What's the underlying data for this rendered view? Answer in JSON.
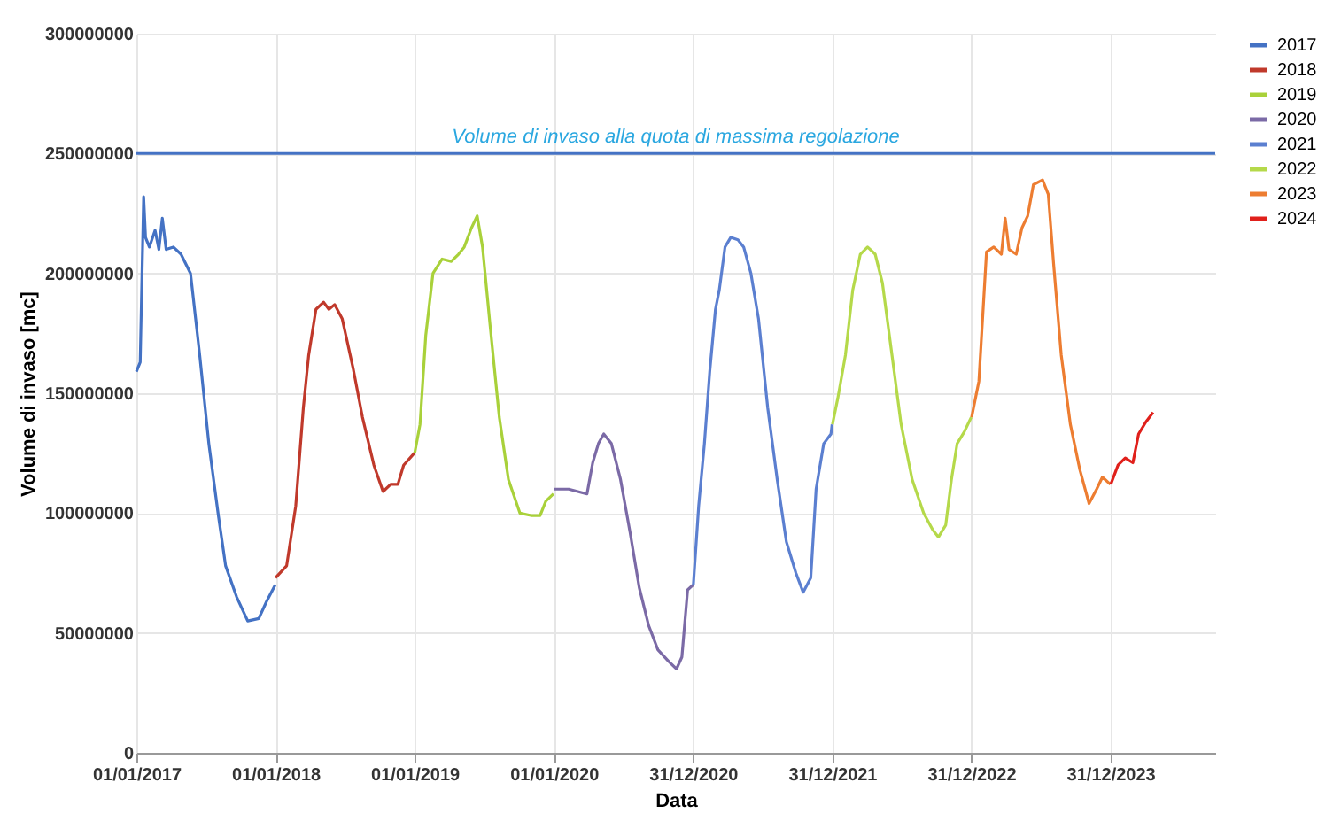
{
  "chart_data": {
    "type": "line",
    "xlabel": "Data",
    "ylabel": "Volume di invaso [mc]",
    "xlim": [
      "2017-01-01",
      "2024-10-01"
    ],
    "xticks": [
      {
        "value": "2017-01-01",
        "label": "01/01/2017"
      },
      {
        "value": "2018-01-01",
        "label": "01/01/2018"
      },
      {
        "value": "2019-01-01",
        "label": "01/01/2019"
      },
      {
        "value": "2020-01-01",
        "label": "01/01/2020"
      },
      {
        "value": "2020-12-31",
        "label": "31/12/2020"
      },
      {
        "value": "2021-12-31",
        "label": "31/12/2021"
      },
      {
        "value": "2022-12-31",
        "label": "31/12/2022"
      },
      {
        "value": "2023-12-31",
        "label": "31/12/2023"
      }
    ],
    "ylim": [
      0,
      300000000
    ],
    "yticks": [
      0,
      50000000,
      100000000,
      150000000,
      200000000,
      250000000,
      300000000
    ],
    "grid": true,
    "legend": "right",
    "ref_lines": [
      {
        "axis": "y",
        "value": 250000000,
        "label": "Volume di invaso alla quota di massima regolazione",
        "color": "#4472c4"
      }
    ],
    "series": [
      {
        "name": "2017",
        "color": "#4472c4",
        "x": [
          "2017-01-01",
          "2017-01-11",
          "2017-01-20",
          "2017-01-25",
          "2017-02-04",
          "2017-02-19",
          "2017-03-01",
          "2017-03-10",
          "2017-03-20",
          "2017-04-08",
          "2017-04-28",
          "2017-05-23",
          "2017-06-16",
          "2017-07-10",
          "2017-08-04",
          "2017-08-23",
          "2017-09-21",
          "2017-10-20",
          "2017-11-18",
          "2017-12-08",
          "2017-12-31"
        ],
        "values": [
          159000000,
          163000000,
          232000000,
          215000000,
          211000000,
          218000000,
          210000000,
          223000000,
          210000000,
          211000000,
          208000000,
          200000000,
          166000000,
          129000000,
          99000000,
          78000000,
          65000000,
          55000000,
          56000000,
          63000000,
          70000000
        ]
      },
      {
        "name": "2018",
        "color": "#c0392b",
        "x": [
          "2018-01-01",
          "2018-01-30",
          "2018-02-23",
          "2018-03-15",
          "2018-03-29",
          "2018-04-17",
          "2018-05-07",
          "2018-05-21",
          "2018-06-05",
          "2018-06-25",
          "2018-07-24",
          "2018-08-17",
          "2018-09-16",
          "2018-10-10",
          "2018-10-30",
          "2018-11-18",
          "2018-12-03",
          "2018-12-31"
        ],
        "values": [
          73000000,
          78000000,
          103000000,
          144000000,
          166000000,
          185000000,
          188000000,
          185000000,
          187000000,
          181000000,
          160000000,
          140000000,
          120000000,
          109000000,
          112000000,
          112000000,
          120000000,
          125000000
        ]
      },
      {
        "name": "2019",
        "color": "#a9d13a",
        "x": [
          "2019-01-01",
          "2019-01-15",
          "2019-01-30",
          "2019-02-18",
          "2019-03-14",
          "2019-04-07",
          "2019-04-26",
          "2019-05-11",
          "2019-05-30",
          "2019-06-14",
          "2019-06-28",
          "2019-07-18",
          "2019-08-11",
          "2019-09-04",
          "2019-10-04",
          "2019-11-02",
          "2019-11-26",
          "2019-12-11",
          "2019-12-31"
        ],
        "values": [
          125000000,
          137000000,
          174000000,
          200000000,
          206000000,
          205000000,
          208000000,
          211000000,
          219000000,
          224000000,
          211000000,
          178000000,
          140000000,
          114000000,
          100000000,
          99000000,
          99000000,
          105000000,
          108000000
        ]
      },
      {
        "name": "2020",
        "color": "#7b6aa6",
        "x": [
          "2020-01-01",
          "2020-02-09",
          "2020-03-28",
          "2020-04-12",
          "2020-04-27",
          "2020-05-11",
          "2020-05-31",
          "2020-06-24",
          "2020-07-19",
          "2020-08-12",
          "2020-09-06",
          "2020-09-30",
          "2020-10-29",
          "2020-11-18",
          "2020-12-02",
          "2020-12-17",
          "2020-12-31"
        ],
        "values": [
          110000000,
          110000000,
          108000000,
          121000000,
          129000000,
          133000000,
          129000000,
          114000000,
          92000000,
          69000000,
          53000000,
          43000000,
          38000000,
          35000000,
          40000000,
          68000000,
          70000000
        ]
      },
      {
        "name": "2021",
        "color": "#5b7fd0",
        "x": [
          "2021-01-01",
          "2021-01-15",
          "2021-01-30",
          "2021-02-13",
          "2021-02-28",
          "2021-03-10",
          "2021-03-25",
          "2021-04-09",
          "2021-04-28",
          "2021-05-13",
          "2021-06-01",
          "2021-06-21",
          "2021-07-15",
          "2021-08-09",
          "2021-09-02",
          "2021-09-27",
          "2021-10-16",
          "2021-11-05",
          "2021-11-19",
          "2021-12-09",
          "2021-12-28",
          "2021-12-31"
        ],
        "values": [
          70000000,
          103000000,
          129000000,
          159000000,
          185000000,
          193000000,
          211000000,
          215000000,
          214000000,
          211000000,
          200000000,
          181000000,
          144000000,
          114000000,
          88000000,
          75000000,
          67000000,
          73000000,
          110000000,
          129000000,
          133000000,
          137000000
        ]
      },
      {
        "name": "2022",
        "color": "#b5d94a",
        "x": [
          "2022-01-01",
          "2022-01-15",
          "2022-02-04",
          "2022-02-23",
          "2022-03-15",
          "2022-04-03",
          "2022-04-23",
          "2022-05-12",
          "2022-06-06",
          "2022-06-30",
          "2022-07-29",
          "2022-08-28",
          "2022-09-21",
          "2022-10-06",
          "2022-10-25",
          "2022-11-09",
          "2022-11-24",
          "2022-12-13",
          "2022-12-31"
        ],
        "values": [
          137000000,
          148000000,
          166000000,
          193000000,
          208000000,
          211000000,
          208000000,
          196000000,
          166000000,
          137000000,
          114000000,
          100000000,
          93000000,
          90000000,
          95000000,
          114000000,
          129000000,
          134000000,
          140000000
        ]
      },
      {
        "name": "2023",
        "color": "#ed7d31",
        "x": [
          "2023-01-01",
          "2023-01-20",
          "2023-02-09",
          "2023-02-28",
          "2023-03-20",
          "2023-03-30",
          "2023-04-09",
          "2023-04-28",
          "2023-05-13",
          "2023-05-28",
          "2023-06-12",
          "2023-07-06",
          "2023-07-21",
          "2023-08-04",
          "2023-08-24",
          "2023-09-17",
          "2023-10-12",
          "2023-11-05",
          "2023-11-25",
          "2023-12-10",
          "2023-12-31"
        ],
        "values": [
          140000000,
          155000000,
          209000000,
          211000000,
          208000000,
          223000000,
          210000000,
          208000000,
          219000000,
          224000000,
          237000000,
          239000000,
          233000000,
          204000000,
          166000000,
          137000000,
          118000000,
          104000000,
          110000000,
          115000000,
          112000000
        ]
      },
      {
        "name": "2024",
        "color": "#e0201b",
        "x": [
          "2024-01-01",
          "2024-01-20",
          "2024-02-08",
          "2024-02-28",
          "2024-03-14",
          "2024-04-02",
          "2024-04-21"
        ],
        "values": [
          112000000,
          120000000,
          123000000,
          121000000,
          133000000,
          138000000,
          142000000
        ]
      }
    ]
  }
}
